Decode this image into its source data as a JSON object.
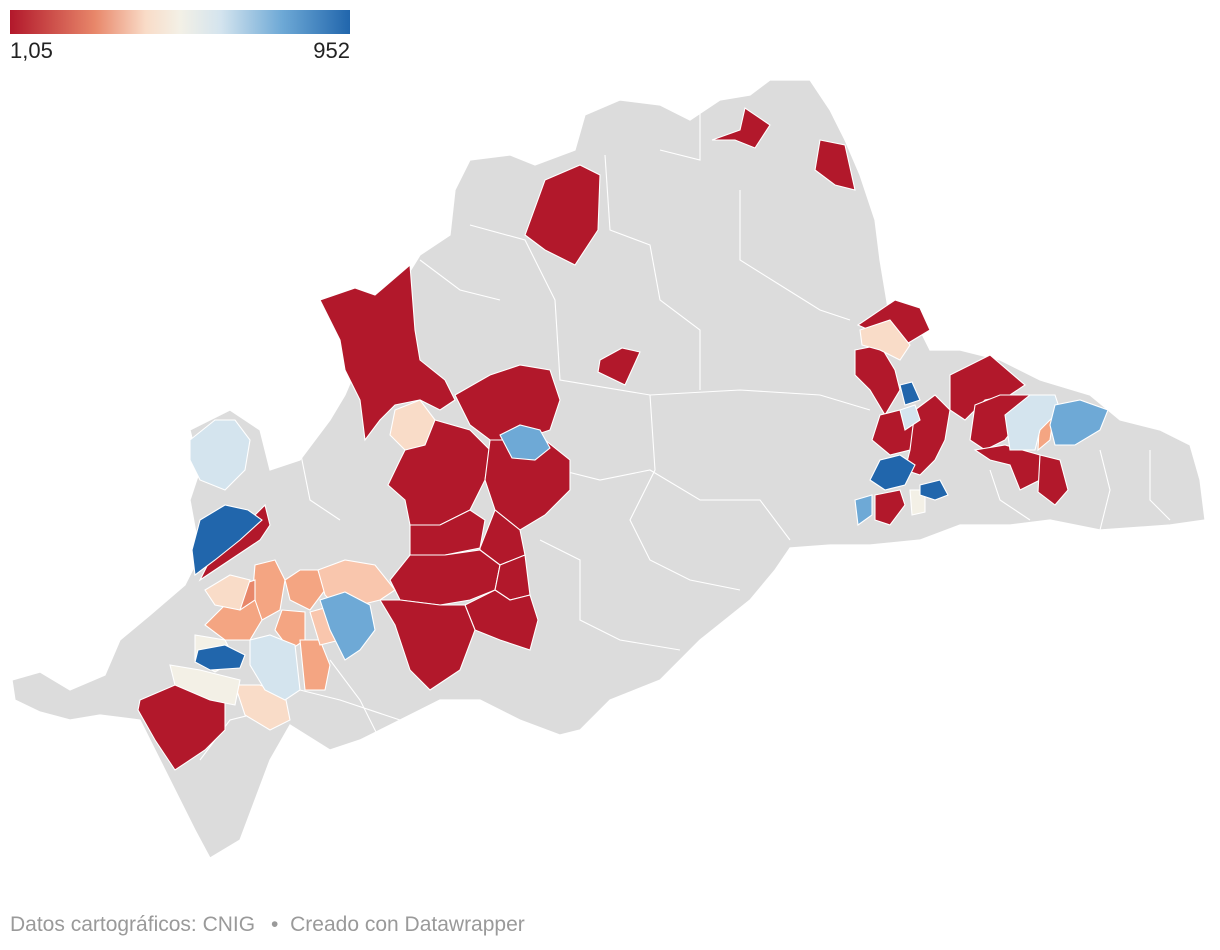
{
  "legend": {
    "min_label": "1,05",
    "max_label": "952",
    "colors": [
      "#b2182b",
      "#e8876a",
      "#f9dcc8",
      "#f3f0e6",
      "#d4e4ee",
      "#6ea9d6",
      "#2166ac"
    ]
  },
  "map": {
    "no_data_color": "#dcdcdc",
    "border_color": "#ffffff"
  },
  "footer": {
    "source": "Datos cartográficos: CNIG",
    "separator": "•",
    "credit": "Creado con Datawrapper"
  }
}
